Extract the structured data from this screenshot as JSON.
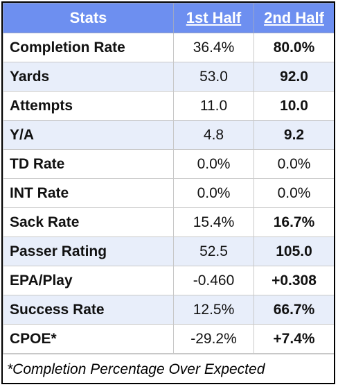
{
  "header": {
    "stats": "Stats",
    "first_half": "1st Half",
    "second_half": "2nd Half"
  },
  "rows": [
    {
      "label": "Completion Rate",
      "first": "36.4%",
      "second": "80.0%",
      "second_style": "good"
    },
    {
      "label": "Yards",
      "first": "53.0",
      "second": "92.0",
      "second_style": "good"
    },
    {
      "label": "Attempts",
      "first": "11.0",
      "second": "10.0",
      "second_style": "good"
    },
    {
      "label": "Y/A",
      "first": "4.8",
      "second": "9.2",
      "second_style": "good"
    },
    {
      "label": "TD Rate",
      "first": "0.0%",
      "second": "0.0%",
      "second_style": "neutral"
    },
    {
      "label": "INT Rate",
      "first": "0.0%",
      "second": "0.0%",
      "second_style": "neutral"
    },
    {
      "label": "Sack Rate",
      "first": "15.4%",
      "second": "16.7%",
      "second_style": "bad"
    },
    {
      "label": "Passer Rating",
      "first": "52.5",
      "second": "105.0",
      "second_style": "good"
    },
    {
      "label": "EPA/Play",
      "first": "-0.460",
      "second": "+0.308",
      "second_style": "good"
    },
    {
      "label": "Success Rate",
      "first": "12.5%",
      "second": "66.7%",
      "second_style": "good"
    },
    {
      "label": "CPOE*",
      "first": "-29.2%",
      "second": "+7.4%",
      "second_style": "good"
    }
  ],
  "footnote": "*Completion Percentage Over Expected",
  "colors": {
    "header_bg": "#6d8ff0",
    "alt_row_bg": "#e8eefa",
    "good": "#4a9a4a",
    "bad": "#d9493f"
  }
}
